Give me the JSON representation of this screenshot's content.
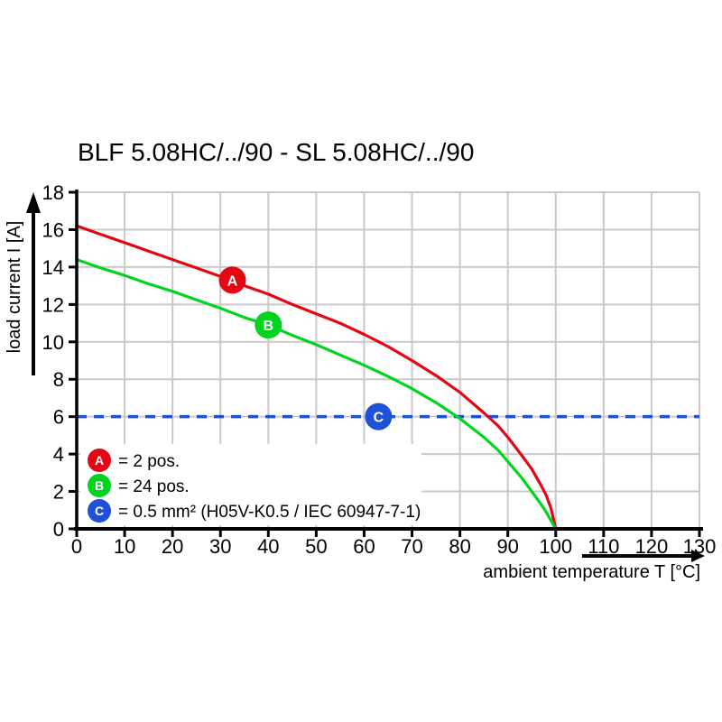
{
  "title": "BLF 5.08HC/../90 - SL 5.08HC/../90",
  "colors": {
    "background": "#ffffff",
    "grid": "#c9c9c9",
    "axis": "#000000",
    "series_a_red": "#e30613",
    "series_b_green": "#00d41f",
    "series_c_blue": "#1e50d8",
    "marker_text": "#ffffff",
    "text": "#000000"
  },
  "chart_data": {
    "type": "line",
    "title": "BLF 5.08HC/../90 - SL 5.08HC/../90",
    "xlabel": "ambient temperature T [°C]",
    "ylabel": "load current I [A]",
    "xlim": [
      0,
      130
    ],
    "ylim": [
      0,
      18
    ],
    "x_ticks": [
      0,
      10,
      20,
      30,
      40,
      50,
      60,
      70,
      80,
      90,
      100,
      110,
      120,
      130
    ],
    "y_ticks": [
      0,
      2,
      4,
      6,
      8,
      10,
      12,
      14,
      16,
      18
    ],
    "grid": true,
    "legend_position": "bottom-left-inside",
    "series": [
      {
        "name": "A",
        "legend_letter": "A",
        "legend_label": "= 2 pos.",
        "color": "#e30613",
        "style": "solid",
        "marker": {
          "letter": "A",
          "x": 32.5,
          "y": 13.3
        },
        "points": [
          [
            0,
            16.2
          ],
          [
            5,
            15.75
          ],
          [
            10,
            15.3
          ],
          [
            15,
            14.85
          ],
          [
            20,
            14.4
          ],
          [
            25,
            13.95
          ],
          [
            30,
            13.5
          ],
          [
            35,
            13.0
          ],
          [
            40,
            12.55
          ],
          [
            45,
            12.0
          ],
          [
            50,
            11.5
          ],
          [
            55,
            11.0
          ],
          [
            60,
            10.4
          ],
          [
            65,
            9.75
          ],
          [
            70,
            9.0
          ],
          [
            75,
            8.2
          ],
          [
            80,
            7.3
          ],
          [
            85,
            6.2
          ],
          [
            88,
            5.5
          ],
          [
            90,
            4.9
          ],
          [
            93,
            3.9
          ],
          [
            95,
            3.2
          ],
          [
            97,
            2.3
          ],
          [
            98,
            1.8
          ],
          [
            99,
            1.1
          ],
          [
            100,
            0
          ]
        ]
      },
      {
        "name": "B",
        "legend_letter": "B",
        "legend_label": "= 24 pos.",
        "color": "#00d41f",
        "style": "solid",
        "marker": {
          "letter": "B",
          "x": 40,
          "y": 10.9
        },
        "points": [
          [
            0,
            14.4
          ],
          [
            5,
            13.95
          ],
          [
            10,
            13.55
          ],
          [
            15,
            13.1
          ],
          [
            20,
            12.7
          ],
          [
            25,
            12.25
          ],
          [
            30,
            11.8
          ],
          [
            35,
            11.3
          ],
          [
            40,
            10.9
          ],
          [
            45,
            10.35
          ],
          [
            50,
            9.85
          ],
          [
            55,
            9.3
          ],
          [
            60,
            8.75
          ],
          [
            65,
            8.15
          ],
          [
            70,
            7.5
          ],
          [
            75,
            6.75
          ],
          [
            80,
            5.9
          ],
          [
            85,
            4.9
          ],
          [
            88,
            4.2
          ],
          [
            90,
            3.6
          ],
          [
            93,
            2.7
          ],
          [
            95,
            2.0
          ],
          [
            97,
            1.3
          ],
          [
            98,
            0.9
          ],
          [
            100,
            0
          ]
        ]
      },
      {
        "name": "C",
        "legend_letter": "C",
        "legend_label": "= 0.5 mm² (H05V-K0.5 / IEC 60947-7-1)",
        "color": "#1e50d8",
        "style": "dashed",
        "value": 6,
        "marker": {
          "letter": "C",
          "x": 63,
          "y": 6
        }
      }
    ]
  }
}
